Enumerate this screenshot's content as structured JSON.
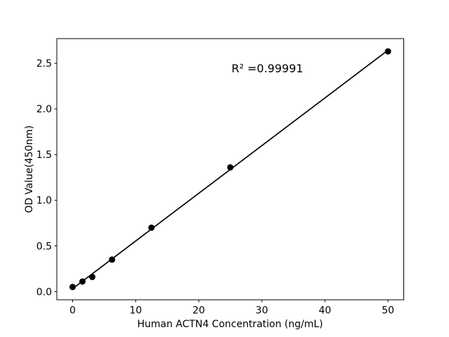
{
  "figure": {
    "background": "#ffffff",
    "foreground": "#000000"
  },
  "chart_data": {
    "type": "scatter",
    "title": "",
    "xlabel": "Human ACTN4 Concentration (ng/mL)",
    "ylabel": "OD Value(450nm)",
    "annotation": "R² =0.99991",
    "points": {
      "x": [
        0,
        1.56,
        3.12,
        6.25,
        12.5,
        25,
        50
      ],
      "y": [
        0.05,
        0.11,
        0.16,
        0.35,
        0.7,
        1.36,
        2.63
      ]
    },
    "fit_line": true,
    "xlim": [
      -2.5,
      52.5
    ],
    "ylim": [
      -0.09,
      2.77
    ],
    "xtick_labels": [
      "0",
      "10",
      "20",
      "30",
      "40",
      "50"
    ],
    "ytick_labels": [
      "0.0",
      "0.5",
      "1.0",
      "1.5",
      "2.0",
      "2.5"
    ],
    "grid": false,
    "legend": null,
    "marker_color": "#000000",
    "line_color": "#000000"
  }
}
